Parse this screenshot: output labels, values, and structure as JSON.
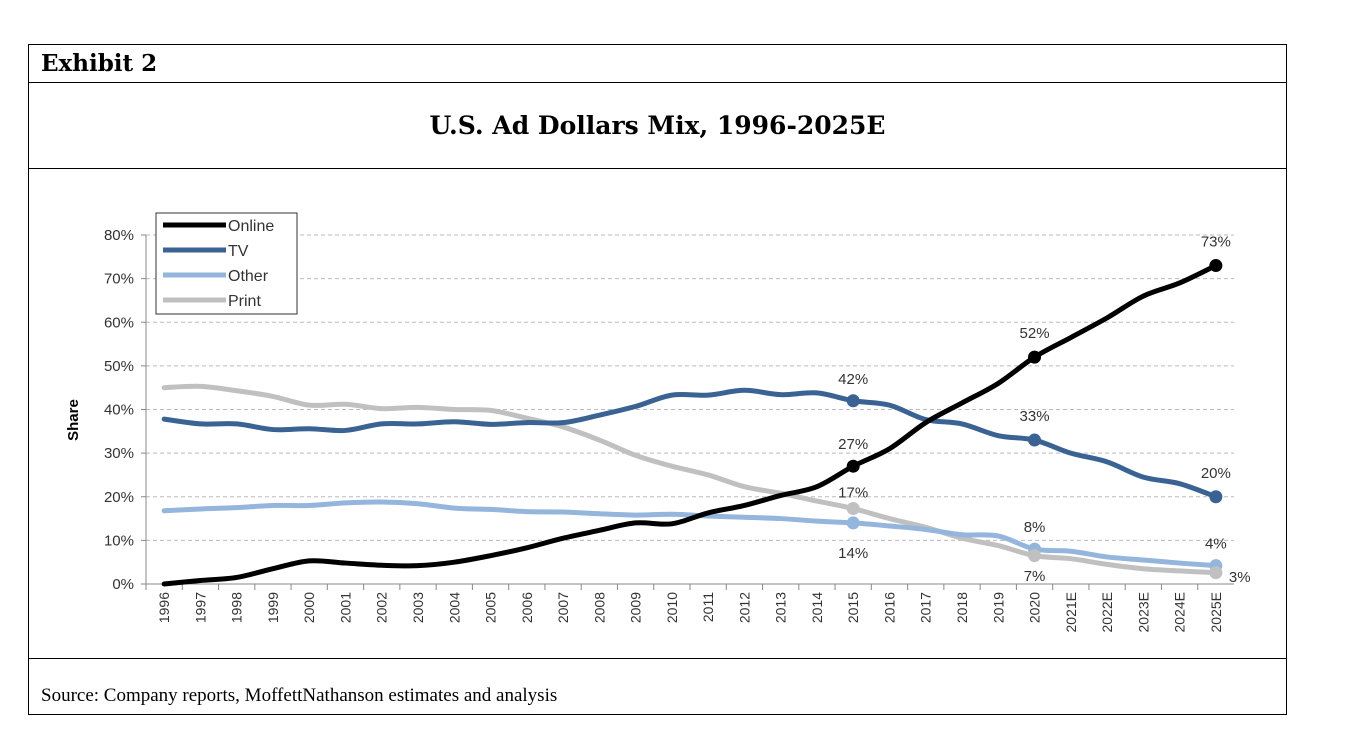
{
  "exhibit": "Exhibit 2",
  "title": "U.S. Ad Dollars Mix, 1996-2025E",
  "source": "Source: Company reports, MoffettNathanson estimates and analysis",
  "chart_data": {
    "type": "line",
    "title": "U.S. Ad Dollars Mix, 1996-2025E",
    "ylabel": "Share",
    "xlabel": "",
    "ylim": [
      0,
      80
    ],
    "yticks": [
      "0%",
      "10%",
      "20%",
      "30%",
      "40%",
      "50%",
      "60%",
      "70%",
      "80%"
    ],
    "grid": true,
    "legend": "top-left",
    "categories": [
      "1996",
      "1997",
      "1998",
      "1999",
      "2000",
      "2001",
      "2002",
      "2003",
      "2004",
      "2005",
      "2006",
      "2007",
      "2008",
      "2009",
      "2010",
      "2011",
      "2012",
      "2013",
      "2014",
      "2015",
      "2016",
      "2017",
      "2018",
      "2019",
      "2020",
      "2021E",
      "2022E",
      "2023E",
      "2024E",
      "2025E"
    ],
    "series": [
      {
        "name": "Online",
        "color": "#000000",
        "values": [
          0,
          0.8,
          1.5,
          3.5,
          5.3,
          4.8,
          4.3,
          4.2,
          5,
          6.5,
          8.3,
          10.5,
          12.3,
          14,
          13.8,
          16.3,
          18,
          20.3,
          22.3,
          27,
          31,
          37,
          41.5,
          46,
          52,
          56.5,
          61,
          66,
          69,
          73
        ]
      },
      {
        "name": "TV",
        "color": "#3a6393",
        "values": [
          37.8,
          36.7,
          36.7,
          35.4,
          35.6,
          35.2,
          36.7,
          36.7,
          37.2,
          36.6,
          37,
          37,
          38.7,
          40.7,
          43.3,
          43.3,
          44.4,
          43.4,
          43.8,
          42,
          41,
          37.7,
          36.7,
          34,
          33,
          30,
          28,
          24.5,
          23,
          20
        ]
      },
      {
        "name": "Other",
        "color": "#94b5dc",
        "values": [
          16.8,
          17.2,
          17.5,
          18,
          18,
          18.6,
          18.8,
          18.4,
          17.4,
          17.1,
          16.6,
          16.5,
          16.1,
          15.8,
          16,
          15.6,
          15.3,
          15,
          14.4,
          14,
          13.3,
          12.5,
          11.3,
          11,
          8,
          7.5,
          6.2,
          5.5,
          4.8,
          4.2
        ]
      },
      {
        "name": "Print",
        "color": "#c0c0c0",
        "values": [
          45,
          45.3,
          44.3,
          43,
          41,
          41.2,
          40.2,
          40.5,
          40,
          39.8,
          38,
          36,
          33,
          29.5,
          27,
          25,
          22.3,
          20.8,
          19,
          17.3,
          15,
          13,
          10.5,
          8.8,
          6.5,
          5.8,
          4.5,
          3.5,
          3,
          2.6
        ]
      }
    ],
    "annotations": [
      {
        "series": "Online",
        "x": "2015",
        "label": "27%"
      },
      {
        "series": "Online",
        "x": "2020",
        "label": "52%"
      },
      {
        "series": "Online",
        "x": "2025E",
        "label": "73%"
      },
      {
        "series": "TV",
        "x": "2015",
        "label": "42%"
      },
      {
        "series": "TV",
        "x": "2020",
        "label": "33%"
      },
      {
        "series": "TV",
        "x": "2025E",
        "label": "20%"
      },
      {
        "series": "Other",
        "x": "2015",
        "label": "14%"
      },
      {
        "series": "Other",
        "x": "2020",
        "label": "8%"
      },
      {
        "series": "Other",
        "x": "2025E",
        "label": "4%"
      },
      {
        "series": "Print",
        "x": "2015",
        "label": "17%"
      },
      {
        "series": "Print",
        "x": "2020",
        "label": "7%"
      },
      {
        "series": "Print",
        "x": "2025E",
        "label": "3%"
      }
    ]
  }
}
